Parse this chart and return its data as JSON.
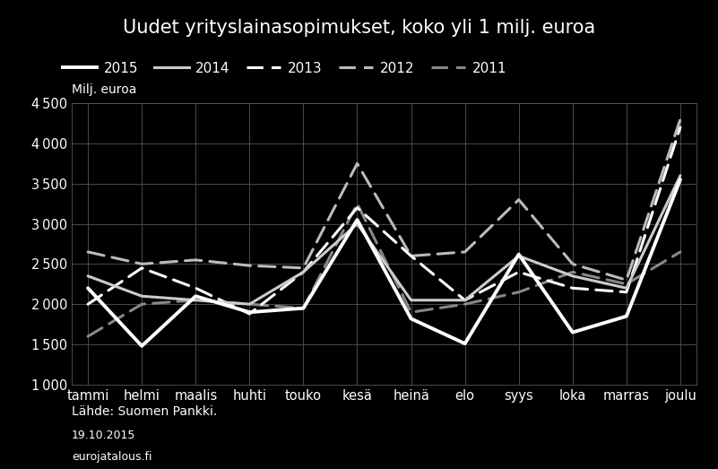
{
  "title": "Uudet yrityslainasopimukset, koko yli 1 milj. euroa",
  "ylabel": "Milj. euroa",
  "source": "Lähde: Suomen Pankki.",
  "date": "19.10.2015",
  "website": "eurojatalous.fi",
  "months": [
    "tammi",
    "helmi",
    "maalis",
    "huhti",
    "touko",
    "kesä",
    "heinä",
    "elo",
    "syys",
    "loka",
    "marras",
    "joulu"
  ],
  "ylim": [
    1000,
    4500
  ],
  "yticks": [
    1000,
    1500,
    2000,
    2500,
    3000,
    3500,
    4000,
    4500
  ],
  "series": {
    "2015": {
      "values": [
        2200,
        1480,
        2100,
        1900,
        1950,
        3050,
        1820,
        1510,
        2620,
        1650,
        1850,
        3550
      ],
      "linestyle": "solid",
      "linewidth": 2.8,
      "color": "#ffffff",
      "zorder": 5
    },
    "2014": {
      "values": [
        2350,
        2100,
        2050,
        2000,
        2400,
        3000,
        2050,
        2050,
        2600,
        2350,
        2200,
        3600
      ],
      "linestyle": "solid",
      "linewidth": 2.2,
      "color": "#cccccc",
      "zorder": 4
    },
    "2013": {
      "values": [
        2000,
        2450,
        2200,
        1880,
        2400,
        3200,
        2600,
        2050,
        2400,
        2200,
        2150,
        4200
      ],
      "linestyle": "dashed",
      "linewidth": 2.2,
      "color": "#ffffff",
      "zorder": 3
    },
    "2012": {
      "values": [
        2650,
        2500,
        2550,
        2480,
        2450,
        3750,
        2600,
        2650,
        3300,
        2500,
        2300,
        4300
      ],
      "linestyle": "dashed",
      "linewidth": 2.2,
      "color": "#bbbbbb",
      "zorder": 2
    },
    "2011": {
      "values": [
        1600,
        2000,
        2050,
        2000,
        1950,
        3250,
        1900,
        2000,
        2150,
        2400,
        2250,
        2650
      ],
      "linestyle": "dashed",
      "linewidth": 2.2,
      "color": "#888888",
      "zorder": 1
    }
  },
  "background_color": "#000000",
  "text_color": "#ffffff",
  "grid_color": "#555555",
  "title_fontsize": 15,
  "legend_fontsize": 11,
  "tick_fontsize": 10.5
}
